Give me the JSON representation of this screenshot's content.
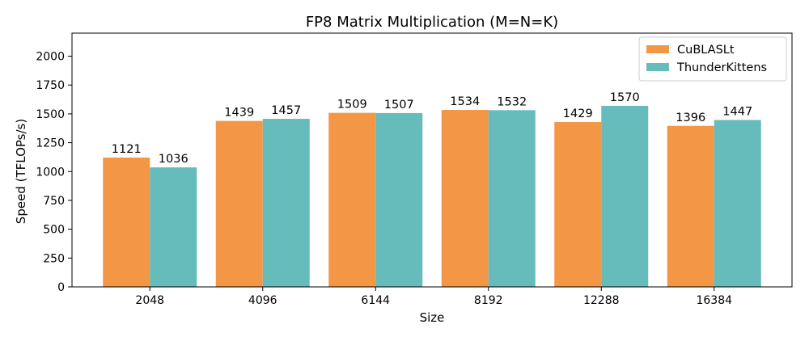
{
  "chart_data": {
    "type": "bar",
    "title": "FP8 Matrix Multiplication (M=N=K)",
    "xlabel": "Size",
    "ylabel": "Speed (TFLOPs/s)",
    "categories": [
      "2048",
      "4096",
      "6144",
      "8192",
      "12288",
      "16384"
    ],
    "series": [
      {
        "name": "CuBLASLt",
        "color": "#f39646",
        "values": [
          1121,
          1439,
          1509,
          1534,
          1429,
          1396
        ]
      },
      {
        "name": "ThunderKittens",
        "color": "#66bbbb",
        "values": [
          1036,
          1457,
          1507,
          1532,
          1570,
          1447
        ]
      }
    ],
    "ylim": [
      0,
      2200
    ],
    "yticks": [
      0,
      250,
      500,
      750,
      1000,
      1250,
      1500,
      1750,
      2000
    ],
    "grid": false,
    "legend_position": "top-right",
    "data_labels": true
  }
}
